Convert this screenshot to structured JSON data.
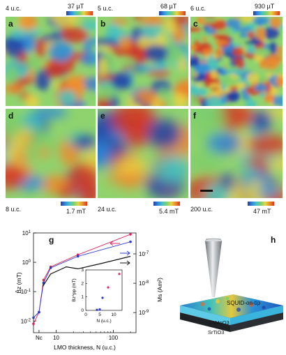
{
  "panels_top": [
    {
      "label": "a",
      "thickness": "4 u.c.",
      "scale": "37 µT"
    },
    {
      "label": "b",
      "thickness": "5 u.c.",
      "scale": "68 µT"
    },
    {
      "label": "c",
      "thickness": "6 u.c.",
      "scale": "930 µT"
    }
  ],
  "panels_bottom": [
    {
      "label": "d",
      "thickness": "8 u.c.",
      "scale": "1.7 mT"
    },
    {
      "label": "e",
      "thickness": "24 u.c.",
      "scale": "5.4 mT"
    },
    {
      "label": "f",
      "thickness": "200 u.c.",
      "scale": "47 mT"
    }
  ],
  "panel_g": {
    "label": "g"
  },
  "panel_h": {
    "label": "h",
    "tip_label": "SQUID-on-tip",
    "film_label": "LaMnO3",
    "substrate_label": "SrTiO3"
  },
  "chart_data": {
    "type": "line",
    "xlabel": "LMO thickness, N (u.c.)",
    "ylabel_left": "B̂z (mT)",
    "ylabel_right": "Ms (Am²)",
    "x_scale": "log",
    "y_scale": "log",
    "x_tick_labels": [
      "Nc",
      "10",
      "100"
    ],
    "y_tick_labels_left": [
      "10^-2",
      "10^-1",
      "10^0",
      "10^1"
    ],
    "y_tick_labels_right": [
      "10^-9",
      "10^-8",
      "10^-7"
    ],
    "xlim": [
      4,
      250
    ],
    "ylim": [
      0.004,
      10
    ],
    "series": [
      {
        "color": "#e0245e",
        "points": [
          [
            4,
            0.008
          ],
          [
            5,
            0.02
          ],
          [
            6,
            0.25
          ],
          [
            8,
            0.7
          ],
          [
            24,
            1.8
          ],
          [
            200,
            9
          ]
        ]
      },
      {
        "color": "#2a3bd0",
        "points": [
          [
            4,
            0.013
          ],
          [
            5,
            0.02
          ],
          [
            6,
            0.2
          ],
          [
            8,
            0.65
          ],
          [
            24,
            1.6
          ],
          [
            200,
            5
          ]
        ]
      },
      {
        "color": "#111111",
        "points": [
          [
            5.8,
            0.15
          ],
          [
            8,
            0.4
          ],
          [
            15,
            0.7
          ],
          [
            24,
            0.6
          ],
          [
            60,
            0.9
          ],
          [
            200,
            1.6
          ]
        ]
      }
    ],
    "inset": {
      "type": "scatter",
      "ylabel": "Bz^pp (mT)",
      "xlabel": "N (u.c.)",
      "x_tick_labels": [
        "0",
        "5",
        "10"
      ],
      "y_tick_labels": [
        "0",
        "1",
        "2",
        "3"
      ],
      "xlim": [
        0,
        13
      ],
      "ylim": [
        0,
        3
      ],
      "blue_points": [
        [
          4,
          0.04
        ],
        [
          5,
          0.07
        ],
        [
          6,
          0.93
        ]
      ],
      "red_points": [
        [
          8,
          1.7
        ],
        [
          12,
          2.7
        ]
      ]
    }
  }
}
